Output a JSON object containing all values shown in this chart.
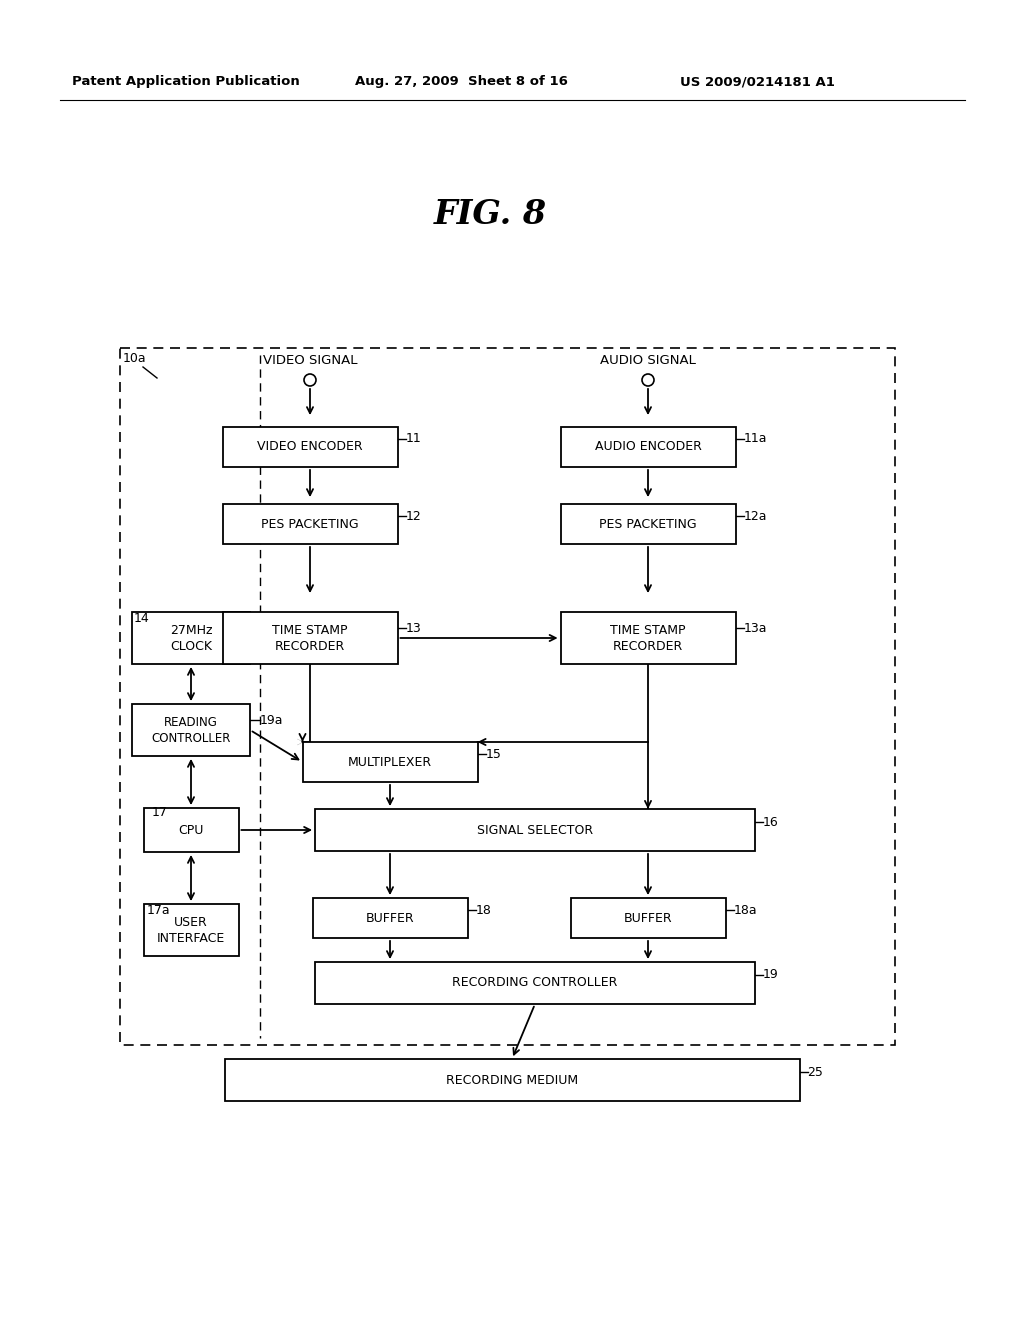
{
  "header_left": "Patent Application Publication",
  "header_mid": "Aug. 27, 2009  Sheet 8 of 16",
  "header_right": "US 2009/0214181 A1",
  "title": "FIG. 8",
  "bg_color": "#ffffff",
  "lc": "#000000"
}
